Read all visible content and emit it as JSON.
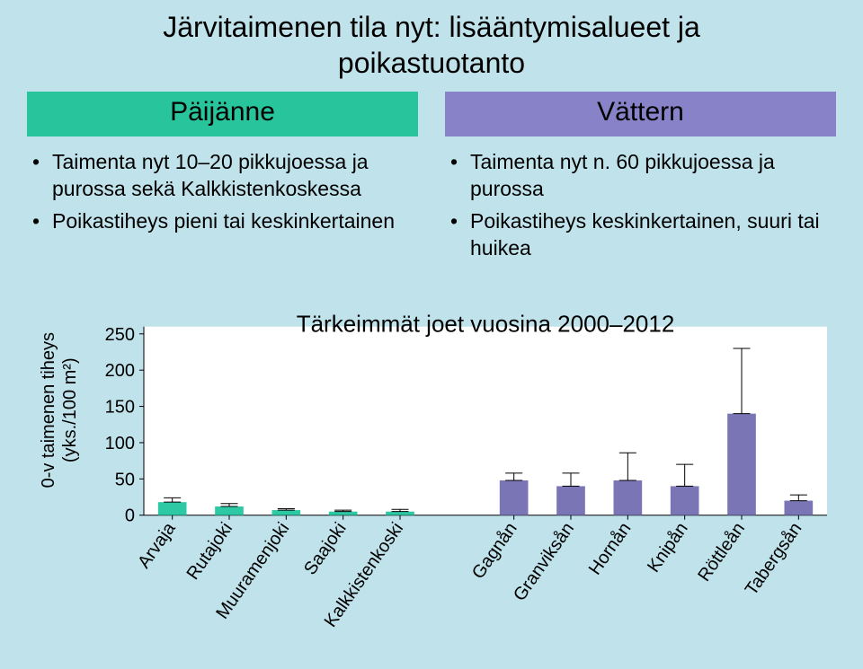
{
  "page": {
    "background_color": "#bfe2eb"
  },
  "title": {
    "line1": "Järvitaimenen tila nyt: lisääntymisalueet ja",
    "line2": "poikastuotanto"
  },
  "left": {
    "header": "Päijänne",
    "header_bg": "#28c49c",
    "bullets": [
      "Taimenta nyt 10‒20 pikkujoessa ja purossa sekä Kalkkistenkoskessa",
      "Poikastiheys pieni tai keskinkertainen"
    ]
  },
  "right": {
    "header": "Vättern",
    "header_bg": "#8882c8",
    "bullets": [
      "Taimenta nyt n. 60 pikkujoessa ja purossa",
      "Poikastiheys keskinkertainen, suuri tai huikea"
    ]
  },
  "chart": {
    "type": "bar-with-error",
    "plot_bg": "#ffffff",
    "header": "Tärkeimmät joet vuosina 2000‒2012",
    "header_fontsize": 26,
    "y_axis": {
      "title_line1": "0-v taimenen tiheys",
      "title_line2": "(yks./100 m²)",
      "lim": [
        0,
        260
      ],
      "ticks": [
        0,
        50,
        100,
        150,
        200,
        250
      ],
      "tick_fontsize": 20,
      "axis_color": "#000000"
    },
    "categories": [
      {
        "label": "Arvaja",
        "value": 18,
        "err": 6,
        "color": "#2dc9a4"
      },
      {
        "label": "Rutajoki",
        "value": 12,
        "err": 4,
        "color": "#2dc9a4"
      },
      {
        "label": "Muuramenjoki",
        "value": 7,
        "err": 2,
        "color": "#2dc9a4"
      },
      {
        "label": "Saajoki",
        "value": 5,
        "err": 2,
        "color": "#2dc9a4"
      },
      {
        "label": "Kalkkistenkoski",
        "value": 5,
        "err": 3,
        "color": "#2dc9a4"
      },
      {
        "label": "Gagnån",
        "value": 48,
        "err": 10,
        "color": "#7a76b6"
      },
      {
        "label": "Granviksån",
        "value": 40,
        "err": 18,
        "color": "#7a76b6"
      },
      {
        "label": "Hornån",
        "value": 48,
        "err": 38,
        "color": "#7a76b6"
      },
      {
        "label": "Knipån",
        "value": 40,
        "err": 30,
        "color": "#7a76b6"
      },
      {
        "label": "Röttleån",
        "value": 140,
        "err": 90,
        "color": "#7a76b6"
      },
      {
        "label": "Tabergsån",
        "value": 20,
        "err": 8,
        "color": "#7a76b6"
      }
    ],
    "group_gap_after_index": 4,
    "bar_width_ratio": 0.5,
    "error_color": "#000000",
    "error_width": 1,
    "cap_width_ratio": 0.3,
    "cat_fontsize": 20,
    "tick_mark_len": 5
  }
}
